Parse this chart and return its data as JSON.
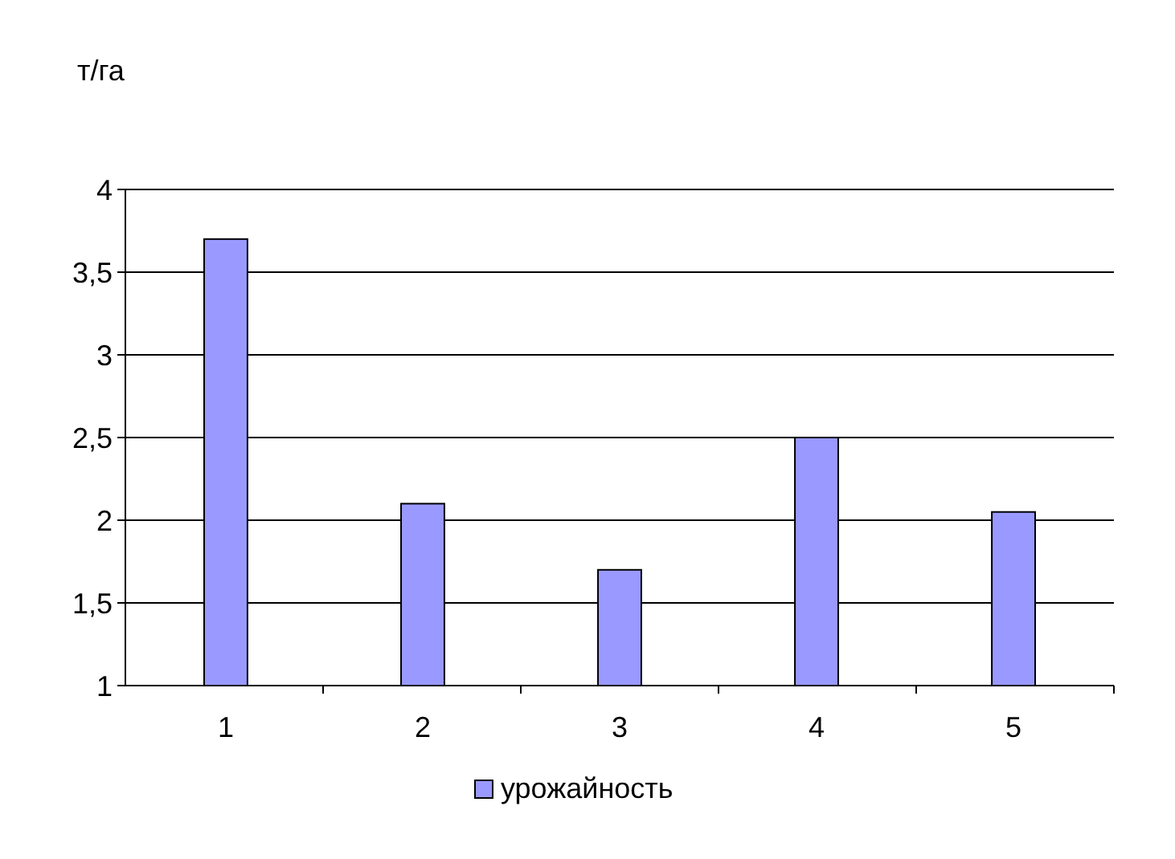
{
  "chart_data": {
    "type": "bar",
    "ylabel": "т/га",
    "categories": [
      "1",
      "2",
      "3",
      "4",
      "5"
    ],
    "series": [
      {
        "name": "урожайность",
        "color": "#9999ff",
        "values": [
          3.7,
          2.1,
          1.7,
          2.5,
          2.05
        ]
      }
    ],
    "ylim": [
      1,
      4
    ],
    "yticks": [
      1,
      {
        "value": 1.5,
        "label": "1,5"
      },
      2,
      {
        "value": 2.5,
        "label": "2,5"
      },
      3,
      {
        "value": 3.5,
        "label": "3,5"
      },
      4
    ],
    "grid": "y",
    "legend": "bottom"
  }
}
